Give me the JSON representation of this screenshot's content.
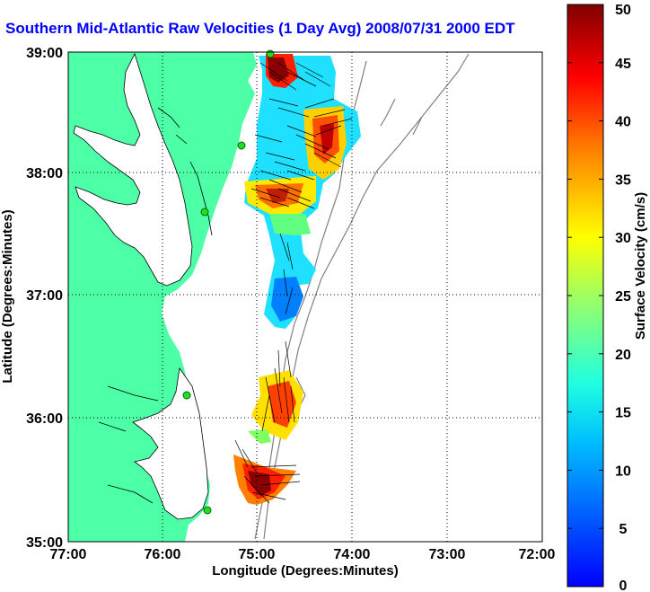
{
  "title": "Southern Mid-Atlantic Raw Velocities (1 Day Avg) 2008/07/31 2000 EDT",
  "axes": {
    "xlabel": "Longitude (Degrees:Minutes)",
    "ylabel": "Latitude (Degrees:Minutes)",
    "xticks": [
      "77:00",
      "76:00",
      "75:00",
      "74:00",
      "73:00",
      "72:00"
    ],
    "yticks": [
      "39:00",
      "38:00",
      "37:00",
      "36:00",
      "35:00"
    ]
  },
  "colorbar": {
    "label": "Surface Velocity (cm/s)",
    "ticks": [
      "50",
      "45",
      "40",
      "35",
      "30",
      "25",
      "20",
      "15",
      "10",
      "5",
      "0"
    ],
    "min": 0,
    "max": 50
  },
  "colors": {
    "land": "#4dffa6",
    "title": "#0000ff",
    "station": "#22dd22"
  },
  "stations": [
    "station-north",
    "station-delaware",
    "station-chesapeake",
    "station-duck",
    "station-hatteras"
  ]
}
